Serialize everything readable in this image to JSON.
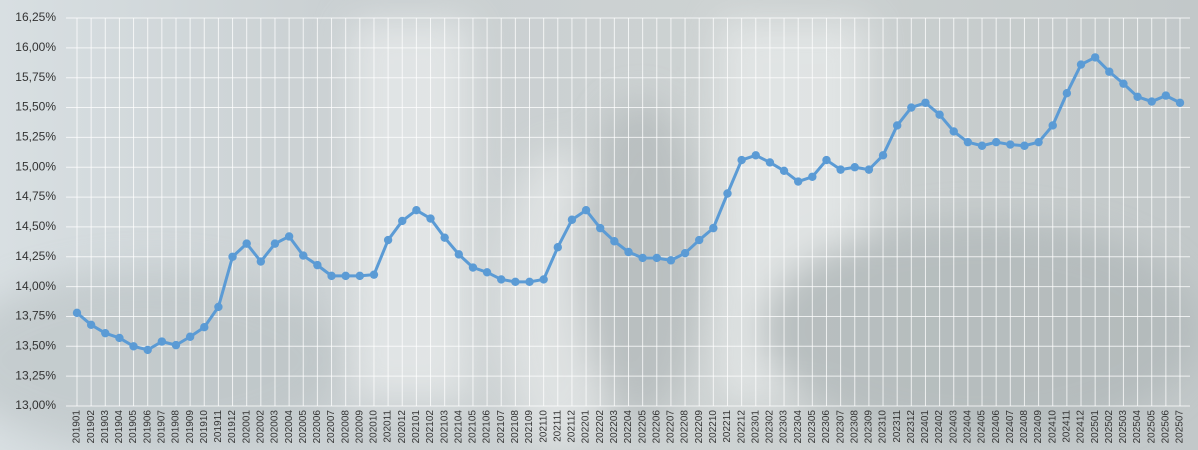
{
  "chart_data": {
    "type": "line",
    "categories": [
      "201901",
      "201902",
      "201903",
      "201904",
      "201905",
      "201906",
      "201907",
      "201908",
      "201909",
      "201910",
      "201911",
      "201912",
      "202001",
      "202002",
      "202003",
      "202004",
      "202005",
      "202006",
      "202007",
      "202008",
      "202009",
      "202010",
      "202011",
      "202012",
      "202101",
      "202102",
      "202103",
      "202104",
      "202105",
      "202106",
      "202107",
      "202108",
      "202109",
      "202110",
      "202111",
      "202112",
      "202201",
      "202202",
      "202203",
      "202204",
      "202205",
      "202206",
      "202207",
      "202208",
      "202209",
      "202210",
      "202211",
      "202212",
      "202301",
      "202302",
      "202303",
      "202304",
      "202305",
      "202306",
      "202307",
      "202308",
      "202309",
      "202310",
      "202311",
      "202312",
      "202401",
      "202402",
      "202403",
      "202404",
      "202405",
      "202406",
      "202407",
      "202408",
      "202409",
      "202410",
      "202411",
      "202412",
      "202501",
      "202502",
      "202503",
      "202504",
      "202505",
      "202506",
      "202507"
    ],
    "series": [
      {
        "color": "#5b9bd5",
        "values": [
          13.78,
          13.68,
          13.61,
          13.57,
          13.5,
          13.47,
          13.54,
          13.51,
          13.58,
          13.66,
          13.83,
          14.25,
          14.36,
          14.21,
          14.36,
          14.42,
          14.26,
          14.18,
          14.09,
          14.09,
          14.09,
          14.1,
          14.39,
          14.55,
          14.64,
          14.57,
          14.41,
          14.27,
          14.16,
          14.12,
          14.06,
          14.04,
          14.04,
          14.06,
          14.33,
          14.56,
          14.64,
          14.49,
          14.38,
          14.29,
          14.24,
          14.24,
          14.22,
          14.28,
          14.39,
          14.49,
          14.78,
          15.06,
          15.1,
          15.04,
          14.97,
          14.88,
          14.92,
          15.06,
          14.98,
          15.0,
          14.98,
          15.1,
          15.35,
          15.5,
          15.54,
          15.44,
          15.3,
          15.21,
          15.18,
          15.21,
          15.19,
          15.18,
          15.21,
          15.35,
          15.62,
          15.86,
          15.92,
          15.8,
          15.7,
          15.59,
          15.55,
          15.6,
          15.54
        ]
      }
    ],
    "ylim": [
      13,
      16.25
    ],
    "yticks": [
      {
        "value": 13,
        "label": "13,00%"
      },
      {
        "value": 13.25,
        "label": "13,25%"
      },
      {
        "value": 13.5,
        "label": "13,50%"
      },
      {
        "value": 13.75,
        "label": "13,75%"
      },
      {
        "value": 14,
        "label": "14,00%"
      },
      {
        "value": 14.25,
        "label": "14,25%"
      },
      {
        "value": 14.5,
        "label": "14,50%"
      },
      {
        "value": 14.75,
        "label": "14,75%"
      },
      {
        "value": 15,
        "label": "15,00%"
      },
      {
        "value": 15.25,
        "label": "15,25%"
      },
      {
        "value": 15.5,
        "label": "15,50%"
      },
      {
        "value": 15.75,
        "label": "15,75%"
      },
      {
        "value": 16,
        "label": "16,00%"
      },
      {
        "value": 16.25,
        "label": "16,25%"
      }
    ],
    "grid": true
  }
}
